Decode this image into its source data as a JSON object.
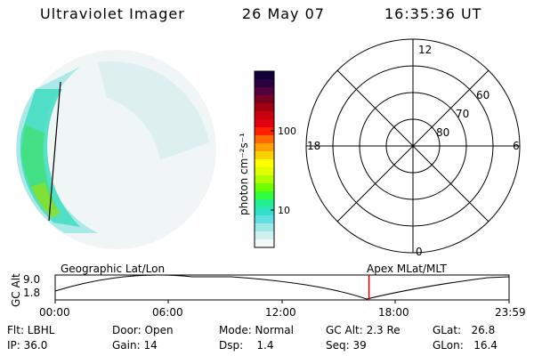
{
  "header": {
    "instrument": "Ultraviolet Imager",
    "date": "26 May 07",
    "time": "16:35:36 UT"
  },
  "colorbar": {
    "unit_label": "photon cm⁻²s⁻¹",
    "tick_labels": [
      "100",
      "10"
    ],
    "colors": [
      "#10003a",
      "#2a0040",
      "#50003c",
      "#7a0020",
      "#a00010",
      "#c80010",
      "#e00010",
      "#ff2000",
      "#ff6a00",
      "#ffa000",
      "#ffd000",
      "#ffff00",
      "#e0ff00",
      "#b0ff00",
      "#70ff00",
      "#30ff40",
      "#20f090",
      "#30e0c8",
      "#60e0e0",
      "#a0e8e8",
      "#d0f0f0",
      "#f2f8f8"
    ]
  },
  "polar": {
    "mlt_labels": [
      "12",
      "18",
      "6",
      "0"
    ],
    "lat_labels": [
      "60",
      "70",
      "80"
    ]
  },
  "timeline": {
    "left_title": "Geographic Lat/Lon",
    "right_title": "Apex MLat/MLT",
    "y_axis_label": "GC Alt",
    "y_ticks": [
      "9.0",
      "1.8"
    ],
    "x_ticks": [
      "00:00",
      "06:00",
      "12:00",
      "18:00",
      "23:59"
    ],
    "current_time_hours": 16.593,
    "cursor_color": "#cc0000"
  },
  "footer": {
    "flt": "Flt: LBHL",
    "ip": "IP: 36.0",
    "door": "Door: Open",
    "gain": "Gain: 14",
    "mode": "Mode: Normal",
    "dsp": "Dsp:    1.4",
    "gc_alt": "GC Alt: 2.3 Re",
    "seq": "Seq: 39",
    "glat": "GLat:   26.8",
    "glon": "GLon:   16.4"
  }
}
